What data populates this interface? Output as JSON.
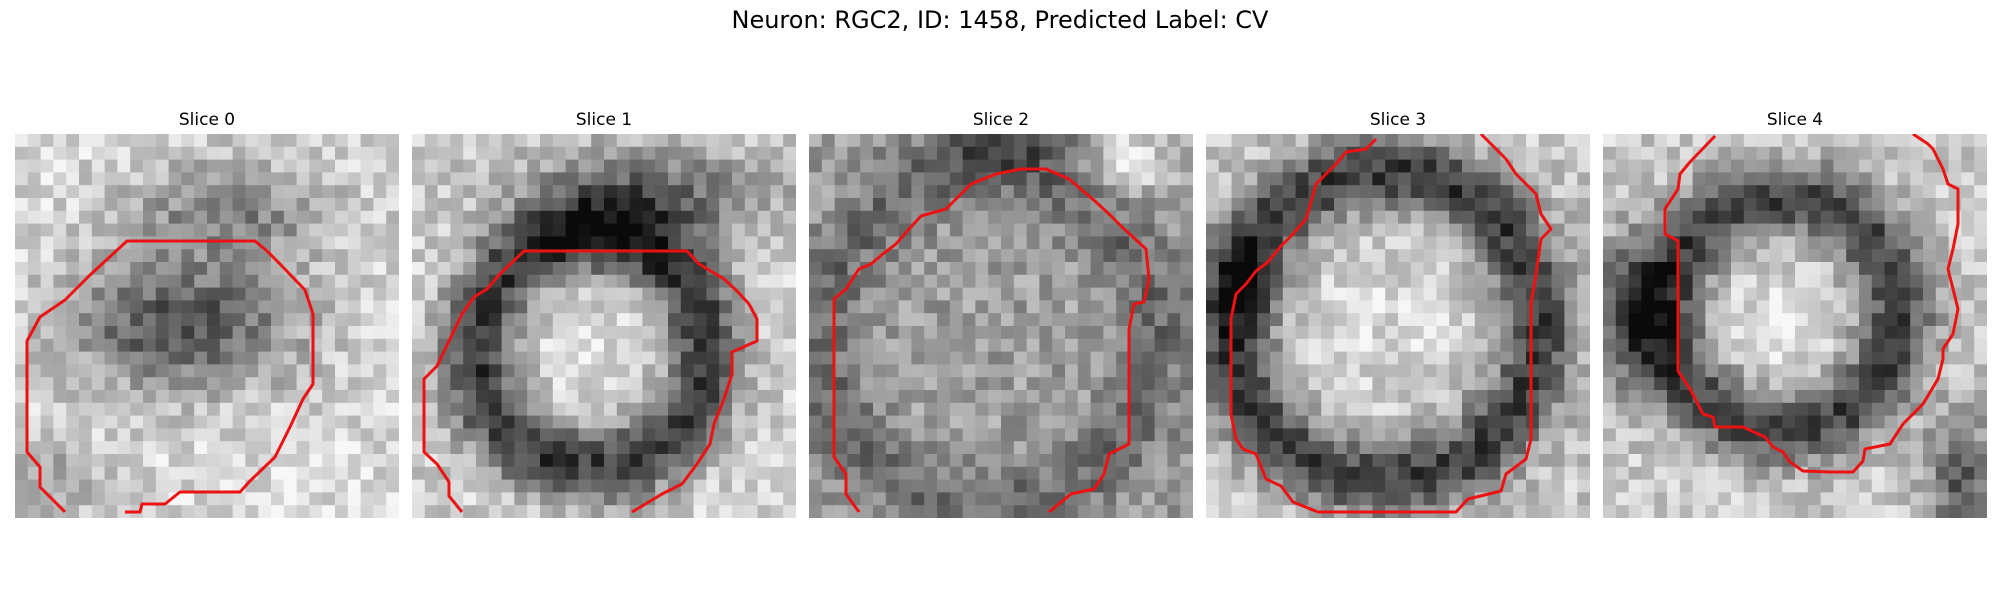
{
  "figure": {
    "title": "Neuron: RGC2, ID: 1458, Predicted Label: CV"
  },
  "panels": [
    {
      "title": "Slice 0"
    },
    {
      "title": "Slice 1"
    },
    {
      "title": "Slice 2"
    },
    {
      "title": "Slice 3"
    },
    {
      "title": "Slice 4"
    }
  ],
  "colors": {
    "contour": "#ee1111",
    "background": "#ffffff"
  }
}
